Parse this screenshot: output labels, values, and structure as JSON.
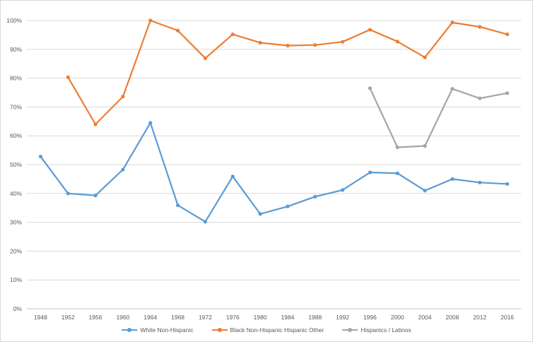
{
  "chart_data": {
    "type": "line",
    "categories": [
      "1948",
      "1952",
      "1956",
      "1960",
      "1964",
      "1968",
      "1972",
      "1976",
      "1980",
      "1984",
      "1988",
      "1992",
      "1996",
      "2000",
      "2004",
      "2008",
      "2012",
      "2016"
    ],
    "ylim": [
      0,
      100
    ],
    "yticks": [
      "0%",
      "10%",
      "20%",
      "30%",
      "40%",
      "50%",
      "60%",
      "70%",
      "80%",
      "90%",
      "100%"
    ],
    "grid": true,
    "legend_position": "bottom",
    "series": [
      {
        "name": "White Non-Hispanic",
        "color": "#5b9bd5",
        "values": [
          52.8,
          40.0,
          39.3,
          48.3,
          64.5,
          35.9,
          30.2,
          45.9,
          32.9,
          35.5,
          38.9,
          41.2,
          47.3,
          47.0,
          41.0,
          45.0,
          43.8,
          43.3
        ]
      },
      {
        "name": "Black Non-Hispanic Hispanic Other",
        "color": "#ed7d31",
        "values": [
          null,
          80.3,
          64.0,
          73.6,
          100.0,
          96.5,
          86.9,
          95.2,
          92.3,
          91.3,
          91.5,
          92.6,
          96.8,
          92.7,
          87.2,
          99.3,
          97.8,
          95.2
        ]
      },
      {
        "name": "Hispanics / Latinos",
        "color": "#a5a5a5",
        "values": [
          null,
          null,
          null,
          null,
          null,
          null,
          null,
          null,
          null,
          null,
          null,
          null,
          76.5,
          56.0,
          56.5,
          76.3,
          73.0,
          74.8
        ]
      }
    ]
  }
}
